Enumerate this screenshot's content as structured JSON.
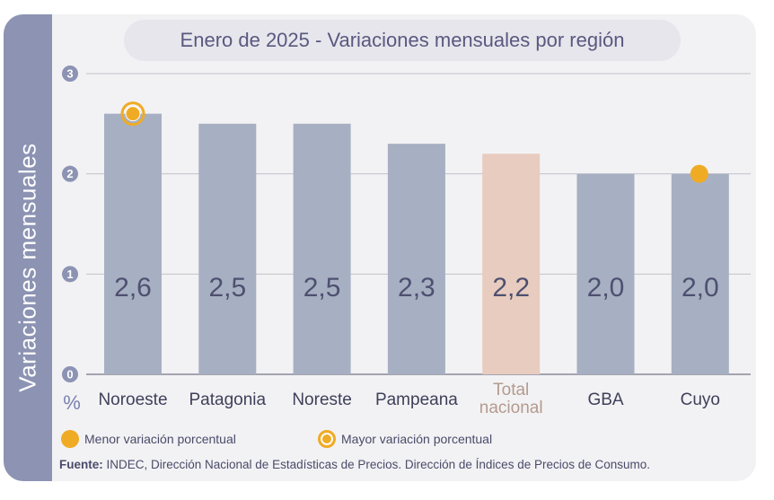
{
  "title": "Enero de 2025 - Variaciones mensuales por región",
  "side_label": "Variaciones  mensuales",
  "unit_label": "%",
  "legend": {
    "min_label": "Menor variación porcentual",
    "max_label": "Mayor variación porcentual"
  },
  "source": {
    "prefix": "Fuente:",
    "text": " INDEC, Dirección Nacional de Estadísticas de Precios. Dirección de Índices de Precios de Consumo."
  },
  "colors": {
    "bar": "#a7afc2",
    "bar_highlight": "#e8ccbf",
    "label_highlight": "#b49a8e",
    "marker": "#f0ab25",
    "text": "#4a4a6a"
  },
  "chart_data": {
    "type": "bar",
    "categories": [
      "Noroeste",
      "Patagonia",
      "Noreste",
      "Pampeana",
      "Total\nnacional",
      "GBA",
      "Cuyo"
    ],
    "values": [
      2.6,
      2.5,
      2.5,
      2.3,
      2.2,
      2.0,
      2.0
    ],
    "value_labels": [
      "2,6",
      "2,5",
      "2,5",
      "2,3",
      "2,2",
      "2,0",
      "2,0"
    ],
    "highlight_index": 4,
    "max_marker_index": 0,
    "min_marker_index": 6,
    "ylim": [
      0,
      3
    ],
    "yticks": [
      0,
      1,
      2,
      3
    ],
    "ytick_labels": [
      "0",
      "1",
      "2",
      "3"
    ],
    "grid": true,
    "legend_position": "bottom-left"
  }
}
